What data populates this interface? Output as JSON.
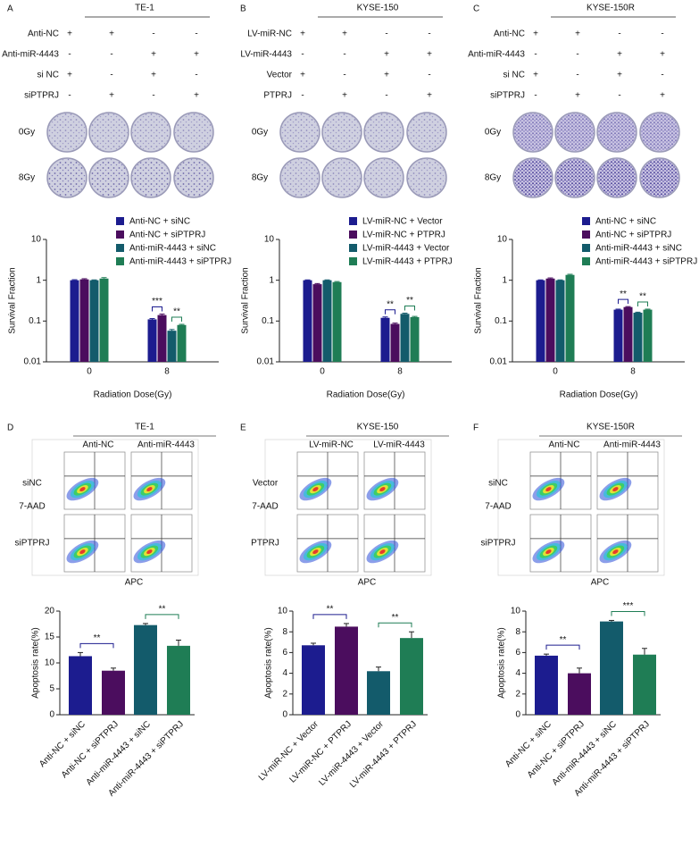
{
  "panels": [
    {
      "letter": "A",
      "title": "TE-1",
      "conditions": [
        {
          "label": "Anti-NC",
          "signs": [
            "+",
            "+",
            "-",
            "-"
          ]
        },
        {
          "label": "Anti-miR-4443",
          "signs": [
            "-",
            "-",
            "+",
            "+"
          ]
        },
        {
          "label": "si NC",
          "signs": [
            "+",
            "-",
            "+",
            "-"
          ]
        },
        {
          "label": "siPTPRJ",
          "signs": [
            "-",
            "+",
            "-",
            "+"
          ]
        }
      ],
      "doses": [
        "0Gy",
        "8Gy"
      ]
    },
    {
      "letter": "B",
      "title": "KYSE-150",
      "conditions": [
        {
          "label": "LV-miR-NC",
          "signs": [
            "+",
            "+",
            "-",
            "-"
          ]
        },
        {
          "label": "LV-miR-4443",
          "signs": [
            "-",
            "-",
            "+",
            "+"
          ]
        },
        {
          "label": "Vector",
          "signs": [
            "+",
            "-",
            "+",
            "-"
          ]
        },
        {
          "label": "PTPRJ",
          "signs": [
            "-",
            "+",
            "-",
            "+"
          ]
        }
      ],
      "doses": [
        "0Gy",
        "8Gy"
      ]
    },
    {
      "letter": "C",
      "title": "KYSE-150R",
      "conditions": [
        {
          "label": "Anti-NC",
          "signs": [
            "+",
            "+",
            "-",
            "-"
          ]
        },
        {
          "label": "Anti-miR-4443",
          "signs": [
            "-",
            "-",
            "+",
            "+"
          ]
        },
        {
          "label": "si NC",
          "signs": [
            "+",
            "-",
            "+",
            "-"
          ]
        },
        {
          "label": "siPTPRJ",
          "signs": [
            "-",
            "+",
            "-",
            "+"
          ]
        }
      ],
      "doses": [
        "0Gy",
        "8Gy"
      ]
    },
    {
      "letter": "D",
      "title": "TE-1",
      "columns": [
        "Anti-NC",
        "Anti-miR-4443"
      ],
      "rows": [
        "siNC",
        "siPTPRJ"
      ],
      "y_axis": "7-AAD",
      "x_axis": "APC"
    },
    {
      "letter": "E",
      "title": "KYSE-150",
      "columns": [
        "LV-miR-NC",
        "LV-miR-4443"
      ],
      "rows": [
        "Vector",
        "PTPRJ"
      ],
      "y_axis": "7-AAD",
      "x_axis": "APC"
    },
    {
      "letter": "F",
      "title": "KYSE-150R",
      "columns": [
        "Anti-NC",
        "Anti-miR-4443"
      ],
      "rows": [
        "siNC",
        "siPTPRJ"
      ],
      "y_axis": "7-AAD",
      "x_axis": "APC"
    }
  ],
  "chart_data": [
    {
      "type": "bar",
      "log_scale": true,
      "ylabel": "Survival Fraction",
      "xlabel": "Radiation Dose(Gy)",
      "categories": [
        "0",
        "8"
      ],
      "series": [
        {
          "name": "Anti-NC + siNC",
          "color": "#1c1c8f",
          "values": [
            1,
            0.11
          ],
          "errors": [
            0.03,
            0.005
          ]
        },
        {
          "name": "Anti-NC + siPTPRJ",
          "color": "#4b0d5e",
          "values": [
            1.05,
            0.14
          ],
          "errors": [
            0.04,
            0.008
          ]
        },
        {
          "name": "Anti-miR-4443 + siNC",
          "color": "#135b6b",
          "values": [
            1,
            0.058
          ],
          "errors": [
            0.02,
            0.004
          ]
        },
        {
          "name": "Anti-miR-4443 + siPTPRJ",
          "color": "#1f7d55",
          "values": [
            1.1,
            0.08
          ],
          "errors": [
            0.06,
            0.003
          ]
        }
      ],
      "ylim": [
        0.01,
        10
      ],
      "yticks": [
        0.01,
        0.1,
        1,
        10
      ],
      "annotations": [
        "***",
        "**"
      ]
    },
    {
      "type": "bar",
      "log_scale": true,
      "ylabel": "Survival Fraction",
      "xlabel": "Radiation Dose(Gy)",
      "categories": [
        "0",
        "8"
      ],
      "series": [
        {
          "name": "LV-miR-NC + Vector",
          "color": "#1c1c8f",
          "values": [
            1,
            0.12
          ],
          "errors": [
            0.02,
            0.006
          ]
        },
        {
          "name": "LV-miR-NC + PTPRJ",
          "color": "#4b0d5e",
          "values": [
            0.8,
            0.085
          ],
          "errors": [
            0.03,
            0.004
          ]
        },
        {
          "name": "LV-miR-4443 + Vector",
          "color": "#135b6b",
          "values": [
            1,
            0.15
          ],
          "errors": [
            0.02,
            0.006
          ]
        },
        {
          "name": "LV-miR-4443 + PTPRJ",
          "color": "#1f7d55",
          "values": [
            0.9,
            0.125
          ],
          "errors": [
            0.03,
            0.005
          ]
        }
      ],
      "ylim": [
        0.01,
        10
      ],
      "yticks": [
        0.01,
        0.1,
        1,
        10
      ],
      "annotations": [
        "**",
        "**"
      ]
    },
    {
      "type": "bar",
      "log_scale": true,
      "ylabel": "Survival Fraction",
      "xlabel": "Radiation Dose(Gy)",
      "categories": [
        "0",
        "8"
      ],
      "series": [
        {
          "name": "Anti-NC + siNC",
          "color": "#1c1c8f",
          "values": [
            1,
            0.19
          ],
          "errors": [
            0.02,
            0.006
          ]
        },
        {
          "name": "Anti-NC + siPTPRJ",
          "color": "#4b0d5e",
          "values": [
            1.1,
            0.22
          ],
          "errors": [
            0.04,
            0.006
          ]
        },
        {
          "name": "Anti-miR-4443 + siNC",
          "color": "#135b6b",
          "values": [
            1,
            0.16
          ],
          "errors": [
            0.02,
            0.005
          ]
        },
        {
          "name": "Anti-miR-4443 + siPTPRJ",
          "color": "#1f7d55",
          "values": [
            1.35,
            0.19
          ],
          "errors": [
            0.05,
            0.006
          ]
        }
      ],
      "ylim": [
        0.01,
        10
      ],
      "yticks": [
        0.01,
        0.1,
        1,
        10
      ],
      "annotations": [
        "**",
        "**"
      ]
    },
    {
      "type": "bar",
      "ylabel": "Apoptosis rate(%)",
      "categories": [
        "Anti-NC + siNC",
        "Anti-NC + siPTPRJ",
        "Anti-miR-4443 + siNC",
        "Anti-miR-4443 + siPTPRJ"
      ],
      "colors": [
        "#1c1c8f",
        "#4b0d5e",
        "#135b6b",
        "#1f7d55"
      ],
      "values": [
        11.3,
        8.5,
        17.3,
        13.3
      ],
      "errors": [
        0.7,
        0.5,
        0.3,
        1.1
      ],
      "ylim": [
        0,
        20
      ],
      "yticks": [
        0,
        5,
        10,
        15,
        20
      ],
      "annotations": [
        "**",
        "**"
      ]
    },
    {
      "type": "bar",
      "ylabel": "Apoptosis rate(%)",
      "categories": [
        "LV-miR-NC + Vector",
        "LV-miR-NC + PTPRJ",
        "LV-miR-4443 + Vector",
        "LV-miR-4443 + PTPRJ"
      ],
      "colors": [
        "#1c1c8f",
        "#4b0d5e",
        "#135b6b",
        "#1f7d55"
      ],
      "values": [
        6.7,
        8.5,
        4.2,
        7.4
      ],
      "errors": [
        0.2,
        0.3,
        0.4,
        0.6
      ],
      "ylim": [
        0,
        10
      ],
      "yticks": [
        0,
        2,
        4,
        6,
        8,
        10
      ],
      "annotations": [
        "**",
        "**"
      ]
    },
    {
      "type": "bar",
      "ylabel": "Apoptosis rate(%)",
      "categories": [
        "Anti-NC + siNC",
        "Anti-NC + siPTPRJ",
        "Anti-miR-4443 + siNC",
        "Anti-miR-4443 + siPTPRJ"
      ],
      "colors": [
        "#1c1c8f",
        "#4b0d5e",
        "#135b6b",
        "#1f7d55"
      ],
      "values": [
        5.7,
        4.0,
        9.0,
        5.8
      ],
      "errors": [
        0.15,
        0.5,
        0.1,
        0.6
      ],
      "ylim": [
        0,
        10
      ],
      "yticks": [
        0,
        2,
        4,
        6,
        8,
        10
      ],
      "annotations": [
        "**",
        "***"
      ]
    }
  ]
}
